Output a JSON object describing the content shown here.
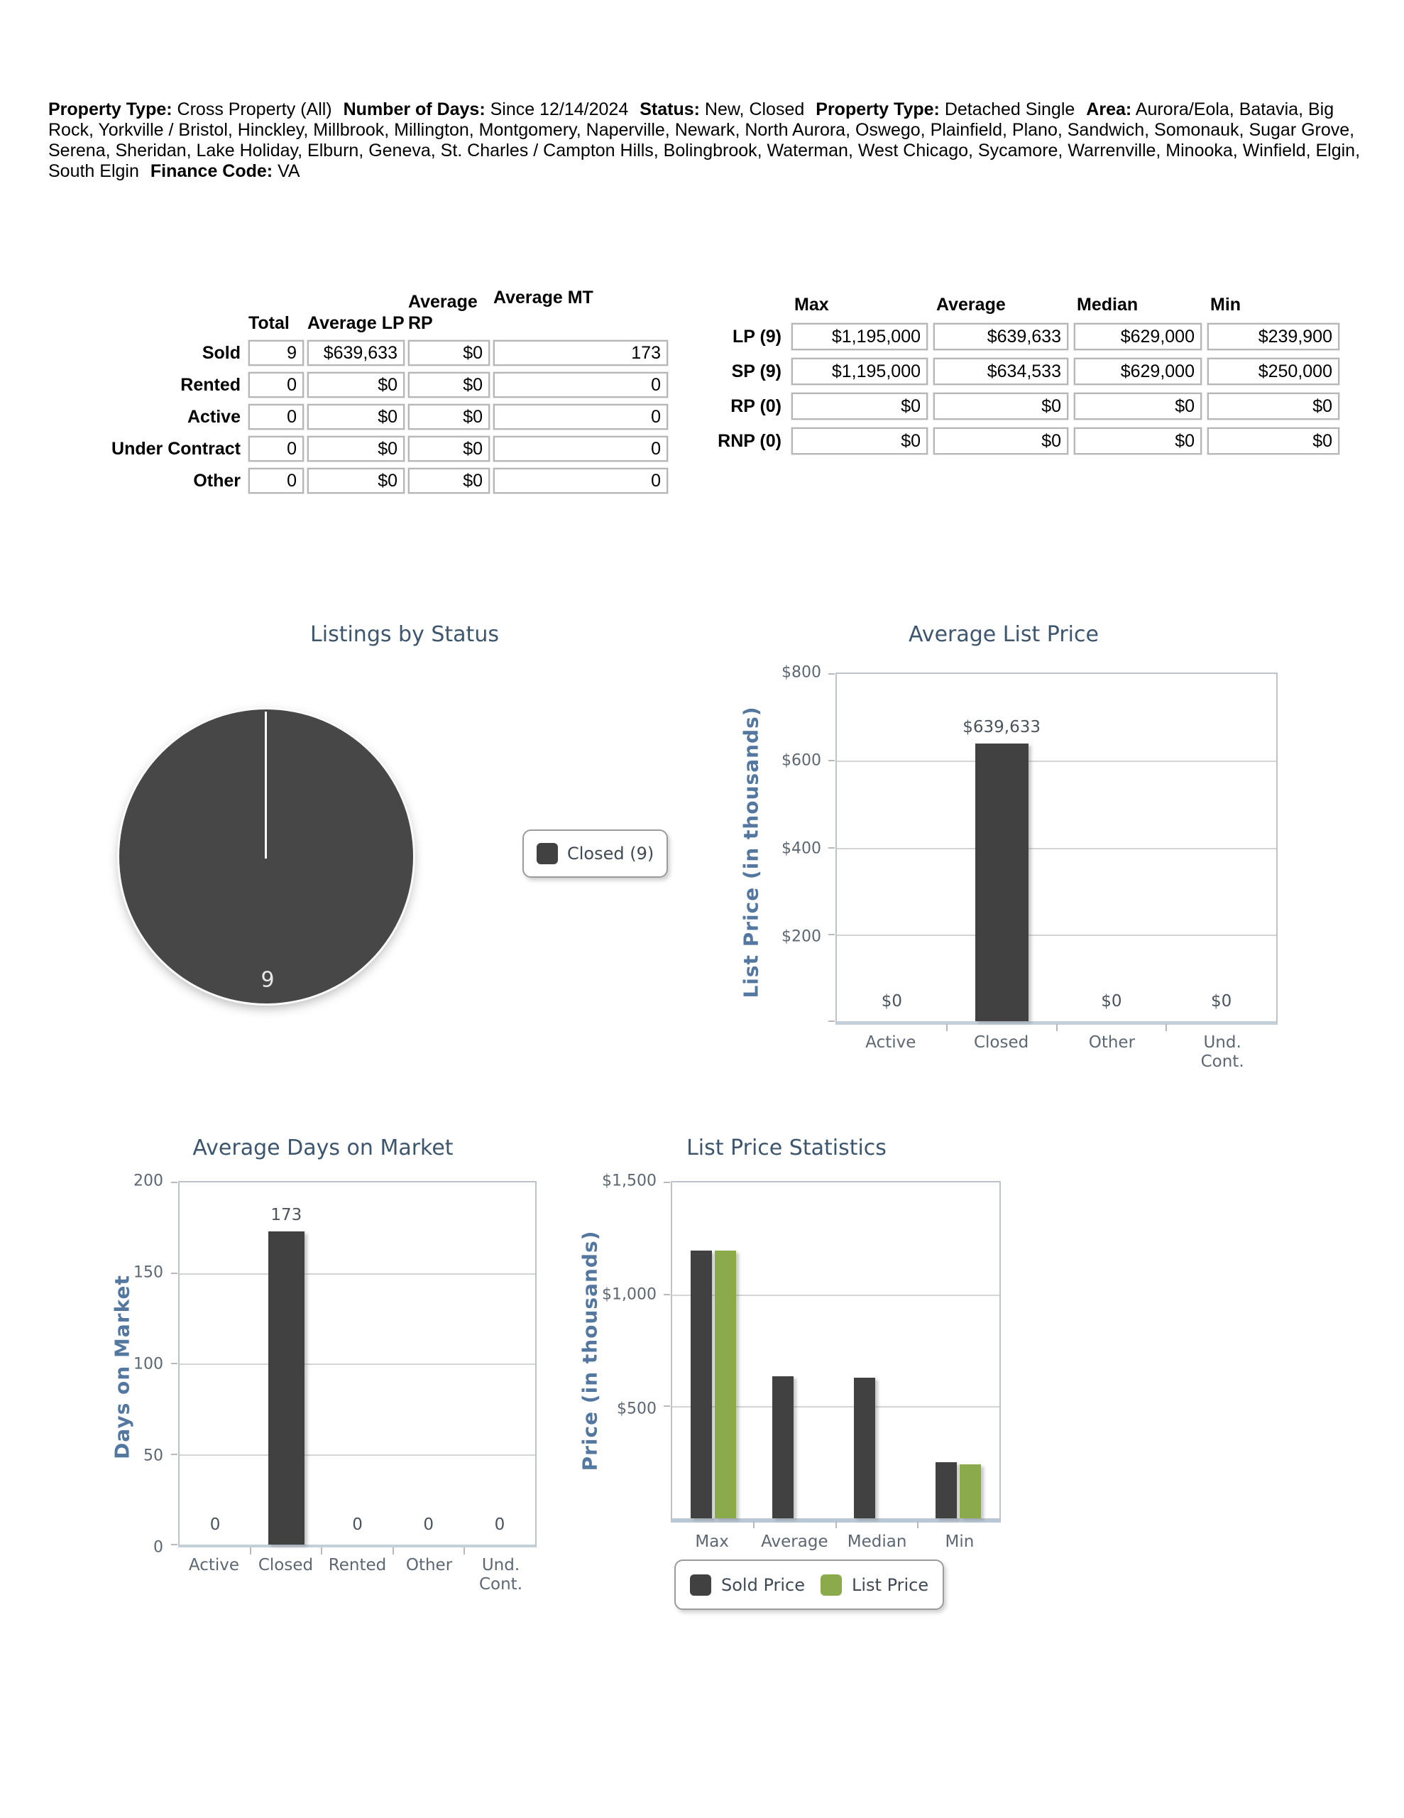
{
  "header": {
    "segments": [
      {
        "label": "Property Type:",
        "value": "Cross Property (All)"
      },
      {
        "label": "Number of Days:",
        "value": "Since 12/14/2024"
      },
      {
        "label": "Status:",
        "value": "New, Closed"
      },
      {
        "label": "Property Type:",
        "value": "Detached Single"
      },
      {
        "label": "Area:",
        "value": "Aurora/Eola, Batavia, Big Rock, Yorkville / Bristol, Hinckley, Millbrook, Millington, Montgomery, Naperville, Newark, North Aurora, Oswego, Plainfield, Plano, Sandwich, Somonauk, Sugar Grove, Serena, Sheridan, Lake Holiday, Elburn, Geneva, St. Charles / Campton Hills, Bolingbrook, Waterman, West Chicago, Sycamore, Warrenville, Minooka, Winfield, Elgin, South Elgin"
      },
      {
        "label": "Finance Code:",
        "value": "VA"
      }
    ]
  },
  "summary_table": {
    "col_headers": [
      "Total",
      "Average LP",
      "Average RP",
      "Average MT"
    ],
    "rows": [
      {
        "label": "Sold",
        "values": [
          "9",
          "$639,633",
          "$0",
          "173"
        ]
      },
      {
        "label": "Rented",
        "values": [
          "0",
          "$0",
          "$0",
          "0"
        ]
      },
      {
        "label": "Active",
        "values": [
          "0",
          "$0",
          "$0",
          "0"
        ]
      },
      {
        "label": "Under Contract",
        "values": [
          "0",
          "$0",
          "$0",
          "0"
        ]
      },
      {
        "label": "Other",
        "values": [
          "0",
          "$0",
          "$0",
          "0"
        ]
      }
    ]
  },
  "stats_table": {
    "col_headers": [
      "Max",
      "Average",
      "Median",
      "Min"
    ],
    "rows": [
      {
        "label": "LP (9)",
        "values": [
          "$1,195,000",
          "$639,633",
          "$629,000",
          "$239,900"
        ]
      },
      {
        "label": "SP (9)",
        "values": [
          "$1,195,000",
          "$634,533",
          "$629,000",
          "$250,000"
        ]
      },
      {
        "label": "RP (0)",
        "values": [
          "$0",
          "$0",
          "$0",
          "$0"
        ]
      },
      {
        "label": "RNP (0)",
        "values": [
          "$0",
          "$0",
          "$0",
          "$0"
        ]
      }
    ]
  },
  "colors": {
    "title": "#3D566E",
    "axis_label": "#54779F",
    "bar_dark": "#414141",
    "bar_green": "#8AAA4B",
    "pie_dark": "#474747"
  },
  "chart_data": [
    {
      "type": "pie",
      "title": "Listings by Status",
      "slices": [
        {
          "label": "Closed",
          "value": 9,
          "color": "#474747"
        }
      ],
      "center_label": "9",
      "legend": [
        {
          "label": "Closed (9)",
          "color": "#414141"
        }
      ]
    },
    {
      "type": "bar",
      "title": "Average List Price",
      "ylabel": "List Price (in thousands)",
      "categories": [
        "Active",
        "Closed",
        "Other",
        "Und. Cont."
      ],
      "values": [
        0,
        639633,
        0,
        0
      ],
      "value_labels": [
        "$0",
        "$639,633",
        "$0",
        "$0"
      ],
      "yticks": [
        "$800",
        "$600",
        "$400",
        "$200"
      ],
      "ylim": [
        0,
        800000
      ],
      "bar_color": "#414141",
      "grid": true,
      "legend_position": "none"
    },
    {
      "type": "bar",
      "title": "Average Days on Market",
      "ylabel": "Days on Market",
      "categories": [
        "Active",
        "Closed",
        "Rented",
        "Other",
        "Und. Cont."
      ],
      "values": [
        0,
        173,
        0,
        0,
        0
      ],
      "value_labels": [
        "0",
        "173",
        "0",
        "0",
        "0"
      ],
      "yticks": [
        "200",
        "150",
        "100",
        "50",
        "0"
      ],
      "ylim": [
        0,
        200
      ],
      "bar_color": "#414141",
      "grid": true,
      "legend_position": "none"
    },
    {
      "type": "bar",
      "title": "List Price Statistics",
      "ylabel": "Price (in thousands)",
      "categories": [
        "Max",
        "Average",
        "Median",
        "Min"
      ],
      "series": [
        {
          "name": "Sold Price",
          "color": "#414141",
          "values": [
            1195000,
            634533,
            629000,
            250000
          ]
        },
        {
          "name": "List Price",
          "color": "#8AAA4B",
          "values": [
            1195000,
            null,
            null,
            239900
          ]
        }
      ],
      "yticks": [
        "$1,500",
        "$1,000",
        "$500"
      ],
      "ylim": [
        0,
        1500000
      ],
      "grid": true,
      "legend_position": "bottom"
    }
  ]
}
